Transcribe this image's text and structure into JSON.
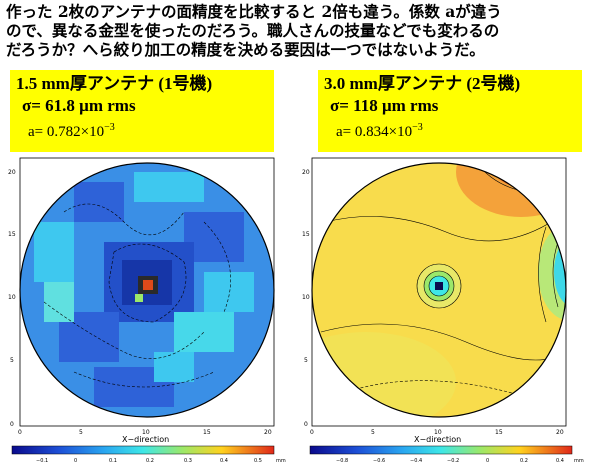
{
  "intro": {
    "line1": "作った 2枚のアンテナの面精度を比較すると 2倍も違う。係数 aが違う",
    "line2": "ので、異なる金型を使ったのだろう。職人さんの技量などでも変わるの",
    "line3": "だろうか？へら絞り加工の精度を決める要因は一つではないようだ。"
  },
  "left": {
    "title": "1.5 mm厚アンテナ (1号機)",
    "sigma_symbol": "σ",
    "sigma_text": "= 61.8 μm rms",
    "a_text": "a= 0.782×10",
    "a_exp": "−3",
    "xlabel": "X−direction",
    "xticks": [
      "0",
      "5",
      "10",
      "15",
      "20"
    ],
    "yticks": [
      "0",
      "5",
      "10",
      "15",
      "20"
    ],
    "cbar_ticks": [
      "−0.1",
      "0",
      "0.1",
      "0.2",
      "0.3",
      "0.4",
      "0.5"
    ],
    "cbar_unit": "mm"
  },
  "right": {
    "title": "3.0 mm厚アンテナ (2号機)",
    "sigma_symbol": "σ",
    "sigma_text": "= 118 μm rms",
    "a_text": "a= 0.834×10",
    "a_exp": "−3",
    "xlabel": "X−direction",
    "xticks": [
      "0",
      "5",
      "10",
      "15",
      "20"
    ],
    "yticks": [
      "0",
      "5",
      "10",
      "15",
      "20"
    ],
    "cbar_ticks": [
      "−0.8",
      "−0.6",
      "−0.4",
      "−0.2",
      "0",
      "0.2",
      "0.4"
    ],
    "cbar_unit": "mm"
  },
  "colors": {
    "yellow_box": "#ffff00",
    "left_base": "#2f86e0",
    "right_base": "#f6d84a"
  }
}
